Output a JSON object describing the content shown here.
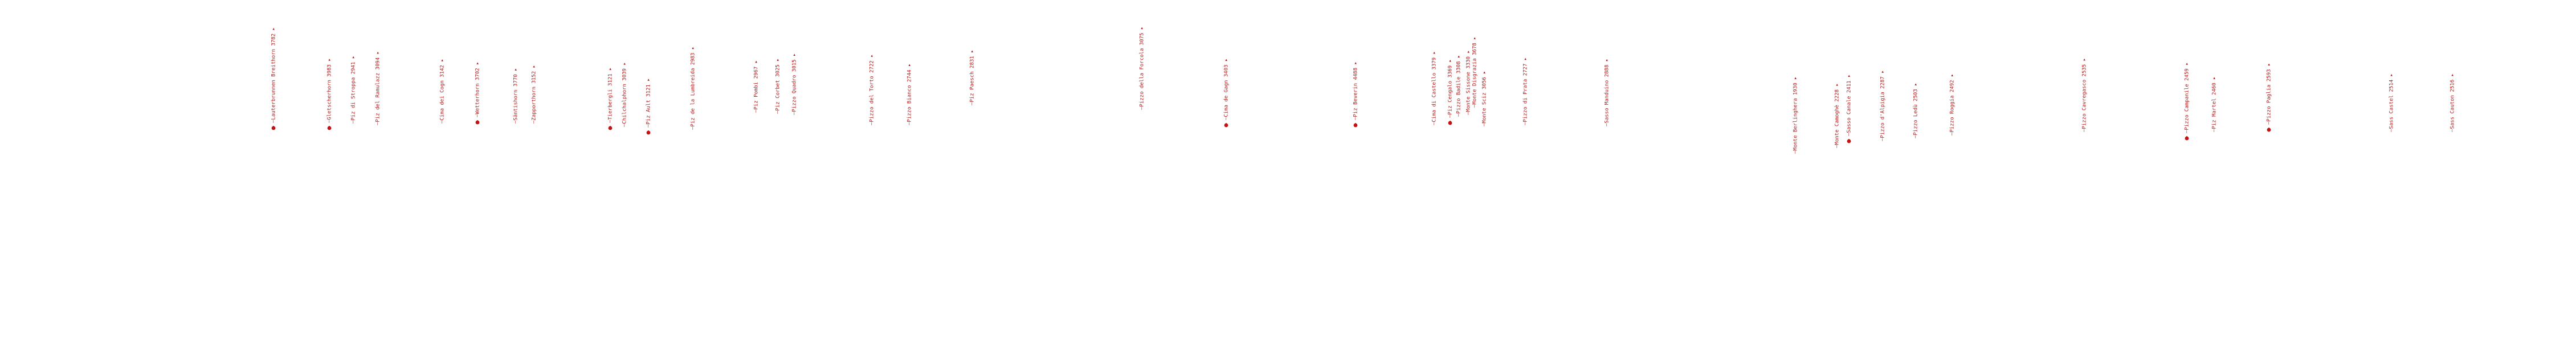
{
  "map": {
    "label_color": "#b01818",
    "marker_color": "#c41212",
    "peaks": [
      {
        "label": "Lauterbrunnen Breithorn 3782",
        "marker": true
      },
      {
        "label": "Gletscherhorn 3983",
        "marker": true
      },
      {
        "label": "Piz di Stroppa 2941",
        "marker": false
      },
      {
        "label": "Piz del Ramulazz 3094",
        "marker": false
      },
      {
        "label": "Cima dei Cogn 3142",
        "marker": false
      },
      {
        "label": "Wetterhorn 3702",
        "marker": true
      },
      {
        "label": "Säntishorn 3770",
        "marker": false
      },
      {
        "label": "Zapporthorn 3152",
        "marker": false
      },
      {
        "label": "Tierbergli 3121",
        "marker": true
      },
      {
        "label": "Chilchalphorn 3039",
        "marker": false
      },
      {
        "label": "Piz Ault 3121",
        "marker": true
      },
      {
        "label": "Piz de la Lumbreida 2983",
        "marker": false
      },
      {
        "label": "Piz Pombi 2967",
        "marker": false
      },
      {
        "label": "Piz Corbet 3025",
        "marker": false
      },
      {
        "label": "Pizzo Quadro 3015",
        "marker": false
      },
      {
        "label": "Pizzo del Torto 2722",
        "marker": false
      },
      {
        "label": "Pizzo Bianco 2744",
        "marker": false
      },
      {
        "label": "Piz Paesch 2831",
        "marker": false
      },
      {
        "label": "Pizzo della Forcola 3075",
        "marker": false
      },
      {
        "label": "Cima de Gagn 3403",
        "marker": true
      },
      {
        "label": "Piz Beverin 4488",
        "marker": true
      },
      {
        "label": "Cima di Castello 3379",
        "marker": false
      },
      {
        "label": "Piz Cengalo 3369",
        "marker": true
      },
      {
        "label": "Pizzo Badile 3308",
        "marker": false
      },
      {
        "label": "Monte Sissone 3330",
        "marker": false
      },
      {
        "label": "Monte Disgrazia 3678",
        "marker": false
      },
      {
        "label": "Monte Sciz 3056",
        "marker": false
      },
      {
        "label": "Pizzo di Prata 2727",
        "marker": false
      },
      {
        "label": "Sasso Manduino 2888",
        "marker": false
      },
      {
        "label": "Monte Berlinghera 1930",
        "marker": false
      },
      {
        "label": "Sasso Canale 2411",
        "marker": true
      },
      {
        "label": "Monte Camoghè 2228",
        "marker": false
      },
      {
        "label": "Pizzo d'Alpigia 2287",
        "marker": false
      },
      {
        "label": "Pizzo Ledù 2503",
        "marker": false
      },
      {
        "label": "Pizzo Roggia 2492",
        "marker": false
      },
      {
        "label": "Pizzo Cavregasco 2535",
        "marker": false
      },
      {
        "label": "Pizzo Campanile 2459",
        "marker": true
      },
      {
        "label": "Piz Martel 2460",
        "marker": false
      },
      {
        "label": "Pizzo Paglia 2593",
        "marker": true
      },
      {
        "label": "Sass Castel 2514",
        "marker": false
      },
      {
        "label": "Sass Cauton 2516",
        "marker": false
      }
    ]
  }
}
